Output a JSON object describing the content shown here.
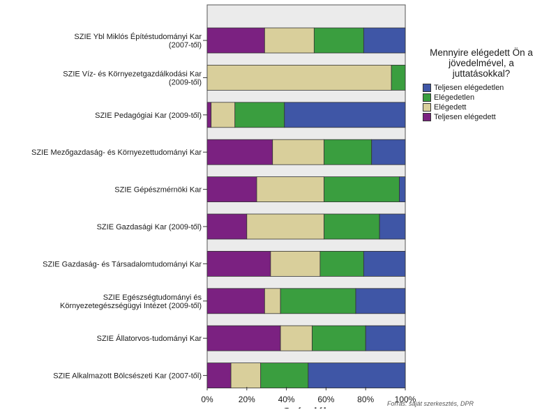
{
  "chart_data": {
    "type": "bar",
    "orientation": "horizontal",
    "stacked": true,
    "categories": [
      "SZIE Ybl Miklós Építéstudományi Kar (2007-től)",
      "SZIE Víz- és Környezetgazdálkodási Kar (2009-től)",
      "SZIE Pedagógiai Kar (2009-től)",
      "SZIE Mezőgazdaság- és Környezettudományi Kar",
      "SZIE Gépészmérnöki Kar",
      "SZIE Gazdasági Kar (2009-től)",
      "SZIE Gazdaság- és Társadalomtudományi Kar",
      "SZIE Egészségtudományi és Környezetegészségügyi Intézet (2009-től)",
      "SZIE Állatorvos-tudományi Kar",
      "SZIE Alkalmazott Bölcsészeti Kar (2007-től)"
    ],
    "series": [
      {
        "name": "Teljesen elégedett",
        "color": "#7b2181",
        "values": [
          29,
          0,
          2,
          33,
          25,
          20,
          32,
          29,
          37,
          12
        ]
      },
      {
        "name": "Elégedett",
        "color": "#d9cf9b",
        "values": [
          25,
          93,
          12,
          26,
          34,
          39,
          25,
          8,
          16,
          15
        ]
      },
      {
        "name": "Elégedetlen",
        "color": "#3a9e3f",
        "values": [
          25,
          7,
          25,
          24,
          38,
          28,
          22,
          38,
          27,
          24
        ]
      },
      {
        "name": "Teljesen elégedetlen",
        "color": "#3f56a6",
        "values": [
          21,
          0,
          61,
          17,
          3,
          13,
          21,
          25,
          20,
          49
        ]
      }
    ],
    "xlabel": "Százalék",
    "ylabel": "",
    "xlim": [
      0,
      100
    ],
    "x_ticks": [
      "0%",
      "20%",
      "40%",
      "60%",
      "80%",
      "100%"
    ],
    "grid": false,
    "legend_title": "Mennyire elégedett Ön a jövedelmével, a juttatásokkal?",
    "legend_entries": [
      "Teljesen elégedetlen",
      "Elégedetlen",
      "Elégedett",
      "Teljesen elégedett"
    ],
    "legend_position": "right"
  },
  "legend_colors": [
    "#3f56a6",
    "#3a9e3f",
    "#d9cf9b",
    "#7b2181"
  ],
  "plot_background": "#ebebeb",
  "footer": "Forrás: saját szerkesztés, DPR"
}
